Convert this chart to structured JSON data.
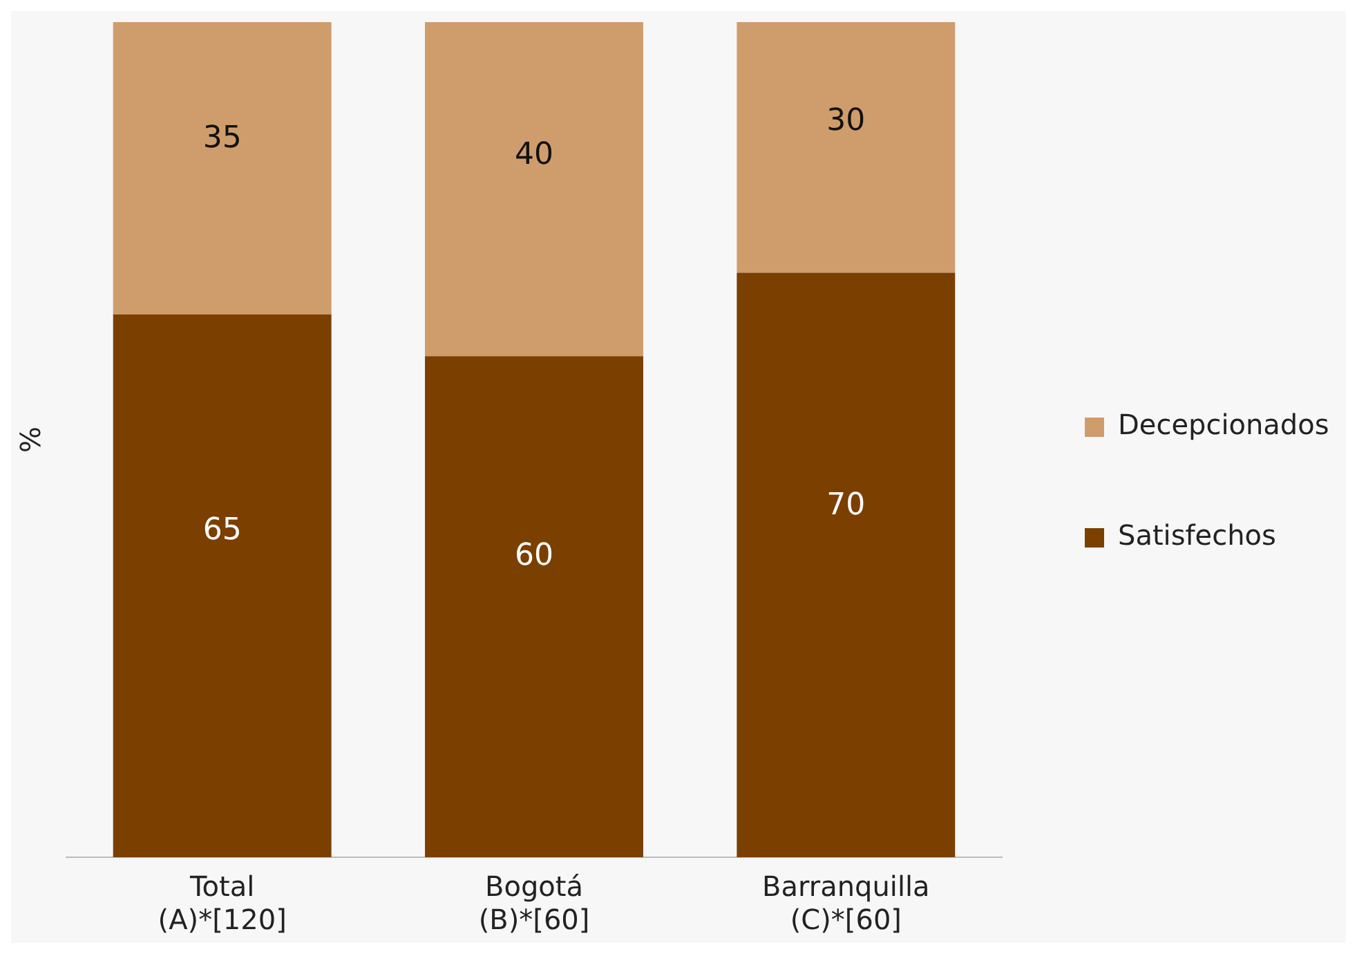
{
  "chart_data": {
    "type": "bar",
    "stacked": true,
    "ylabel": "%",
    "categories": [
      "Total\n(A)*[120]",
      "Bogotá\n(B)*[60]",
      "Barranquilla\n(C)*[60]"
    ],
    "series": [
      {
        "name": "Satisfechos",
        "color": "#7b3f00",
        "values": [
          65,
          60,
          70
        ]
      },
      {
        "name": "Decepcionados",
        "color": "#cf9d6c",
        "values": [
          35,
          40,
          30
        ]
      }
    ],
    "data_labels": true,
    "legend": "right",
    "grid": false
  }
}
